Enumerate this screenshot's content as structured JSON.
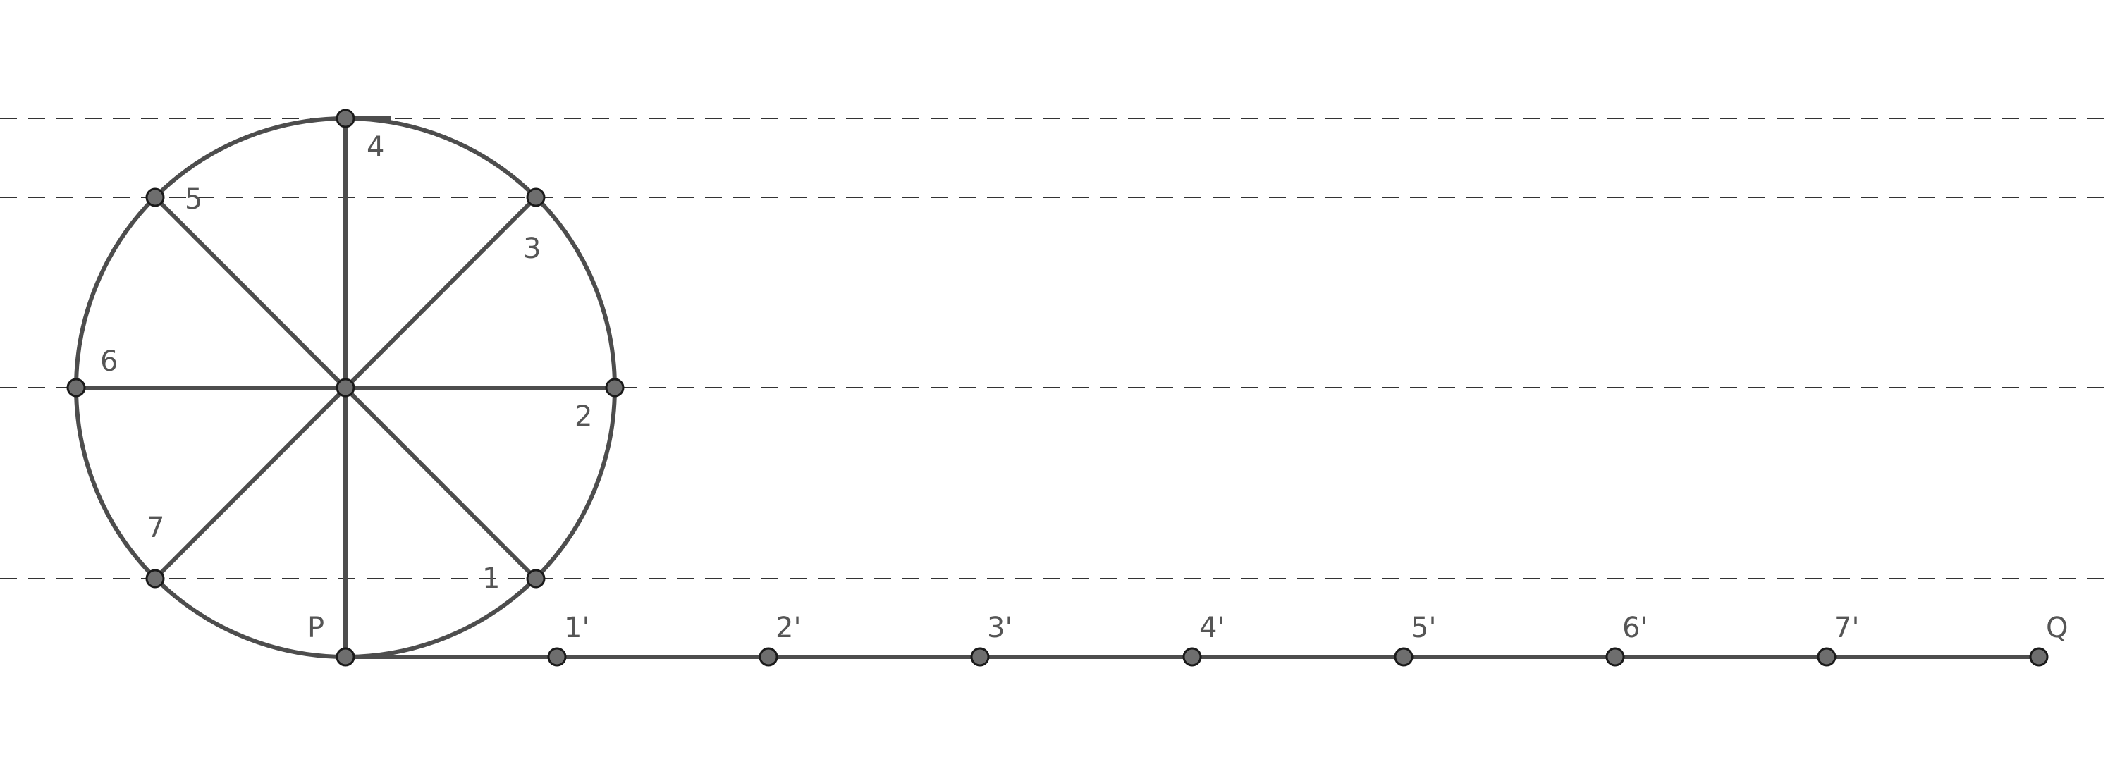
{
  "diagram": {
    "circle_point_labels": [
      "1",
      "2",
      "3",
      "4",
      "5",
      "6",
      "7"
    ],
    "line_point_labels": [
      "1'",
      "2'",
      "3'",
      "4'",
      "5'",
      "6'",
      "7'"
    ],
    "start_label": "P",
    "end_label": "Q",
    "colors": {
      "line": "#4d4d4d",
      "point_fill": "#6e6e6e",
      "point_stroke": "#1a1a1a",
      "label": "#555555",
      "guide": "#333333"
    }
  }
}
